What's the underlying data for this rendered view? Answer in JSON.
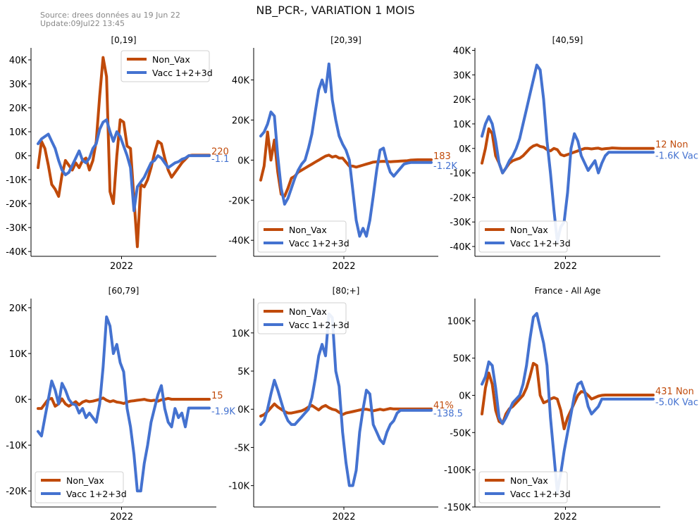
{
  "header": {
    "source": "Source: drees données au 19 Jun 22",
    "update": "Update:09Jul22 13:45",
    "title": "NB_PCR-, VARIATION 1 MOIS"
  },
  "colors": {
    "nonvax": "#c04a0a",
    "vacc": "#4472d0"
  },
  "chart_data": [
    {
      "type": "line",
      "title": "[0,19]",
      "xtick": "2022",
      "yticks": [
        40000,
        30000,
        20000,
        10000,
        0,
        -10000,
        -20000,
        -30000,
        -40000
      ],
      "ytick_labels": [
        "40K",
        "30K",
        "20K",
        "10K",
        "0K",
        "-10K",
        "-20K",
        "-30K",
        "-40K"
      ],
      "ylim": [
        -42000,
        45000
      ],
      "legend": "top-right",
      "end_labels": {
        "nonvax": "220",
        "vacc": "-1.1"
      },
      "x": [
        0,
        0.02,
        0.04,
        0.06,
        0.08,
        0.1,
        0.12,
        0.14,
        0.16,
        0.18,
        0.2,
        0.22,
        0.24,
        0.26,
        0.28,
        0.3,
        0.32,
        0.34,
        0.36,
        0.38,
        0.4,
        0.42,
        0.44,
        0.46,
        0.48,
        0.5,
        0.52,
        0.54,
        0.56,
        0.58,
        0.6,
        0.62,
        0.64,
        0.66,
        0.68,
        0.7,
        0.72,
        0.74,
        0.76,
        0.78,
        0.8,
        0.82,
        0.84,
        0.86,
        0.88,
        0.9,
        0.92,
        0.94,
        0.96,
        0.98,
        1
      ],
      "series": [
        {
          "name": "Non_Vax",
          "values": [
            -5000,
            6000,
            3000,
            -4000,
            -12000,
            -14000,
            -17000,
            -8000,
            -2000,
            -4000,
            -6000,
            -3000,
            -5000,
            -2000,
            -1000,
            -6000,
            -2000,
            6000,
            25000,
            41000,
            33000,
            -15000,
            -20000,
            0,
            15000,
            14000,
            4000,
            3000,
            -18000,
            -38000,
            -12000,
            -13000,
            -10000,
            -5000,
            1000,
            6000,
            5000,
            -1000,
            -6000,
            -9000,
            -7000,
            -5000,
            -3000,
            -1500,
            0,
            200,
            220,
            220,
            220,
            220,
            220
          ]
        },
        {
          "name": "Vacc 1+2+3d",
          "values": [
            5000,
            7000,
            8000,
            9000,
            6000,
            3000,
            -2000,
            -6000,
            -8000,
            -7000,
            -4000,
            -1000,
            2000,
            -2000,
            -3000,
            -1000,
            3000,
            5000,
            11000,
            14000,
            15000,
            10000,
            6000,
            10000,
            8000,
            4000,
            0,
            -5000,
            -23000,
            -13000,
            -11000,
            -9000,
            -6000,
            -3000,
            -2000,
            0,
            -1000,
            -3000,
            -5000,
            -4000,
            -3000,
            -2500,
            -1500,
            -1000,
            -1,
            -1,
            -1.1,
            -1.1,
            -1.1,
            -1.1,
            -1.1
          ]
        }
      ]
    },
    {
      "type": "line",
      "title": "[20,39]",
      "xtick": "2022",
      "yticks": [
        40000,
        20000,
        0,
        -20000,
        -40000
      ],
      "ytick_labels": [
        "40K",
        "20K",
        "0K",
        "-20K",
        "-40K"
      ],
      "ylim": [
        -48000,
        56000
      ],
      "legend": "bottom-left",
      "end_labels": {
        "nonvax": "183",
        "vacc": "-1.2K"
      },
      "x": [
        0,
        0.02,
        0.04,
        0.06,
        0.08,
        0.1,
        0.12,
        0.14,
        0.16,
        0.18,
        0.2,
        0.22,
        0.24,
        0.26,
        0.28,
        0.3,
        0.32,
        0.34,
        0.36,
        0.38,
        0.4,
        0.42,
        0.44,
        0.46,
        0.48,
        0.5,
        0.52,
        0.54,
        0.56,
        0.58,
        0.6,
        0.62,
        0.64,
        0.66,
        0.68,
        0.7,
        0.72,
        0.74,
        0.76,
        0.78,
        0.8,
        0.82,
        0.84,
        0.86,
        0.88,
        0.9,
        0.92,
        0.94,
        0.96,
        0.98,
        1
      ],
      "series": [
        {
          "name": "Non_Vax",
          "values": [
            -10000,
            -3000,
            14000,
            0,
            10000,
            -6000,
            -17000,
            -18000,
            -14000,
            -9000,
            -8000,
            -6000,
            -5000,
            -4000,
            -3000,
            -2000,
            -1000,
            0,
            1000,
            2000,
            2500,
            1500,
            2000,
            1000,
            1000,
            -1000,
            -3000,
            -3000,
            -3500,
            -3000,
            -2500,
            -2000,
            -1500,
            -1000,
            -800,
            -700,
            -600,
            -700,
            -800,
            -700,
            -600,
            -500,
            -400,
            -300,
            0,
            100,
            183,
            183,
            183,
            183,
            183
          ]
        },
        {
          "name": "Vacc 1+2+3d",
          "values": [
            12000,
            14000,
            18000,
            24000,
            22000,
            2000,
            -14000,
            -22000,
            -19000,
            -14000,
            -9000,
            -5000,
            -2000,
            0,
            6000,
            13000,
            24000,
            35000,
            40000,
            34000,
            48000,
            30000,
            20000,
            12000,
            8000,
            5000,
            0,
            -15000,
            -30000,
            -38000,
            -34000,
            -38000,
            -30000,
            -18000,
            -5000,
            5000,
            6000,
            -1000,
            -6000,
            -8000,
            -6000,
            -4000,
            -2000,
            -1500,
            -1200,
            -1200,
            -1200,
            -1200,
            -1200,
            -1200,
            -1200
          ]
        }
      ]
    },
    {
      "type": "line",
      "title": "[40,59]",
      "xtick": "2022",
      "yticks": [
        40000,
        30000,
        20000,
        10000,
        0,
        -10000,
        -20000,
        -30000,
        -40000
      ],
      "ytick_labels": [
        "40K",
        "30K",
        "20K",
        "10K",
        "0K",
        "-10K",
        "-20K",
        "-30K",
        "-40K"
      ],
      "ylim": [
        -44000,
        41000
      ],
      "legend": "bottom-left",
      "end_labels": {
        "nonvax": "12 Non",
        "vacc": "-1.6K Vac"
      },
      "x": [
        0,
        0.02,
        0.04,
        0.06,
        0.08,
        0.1,
        0.12,
        0.14,
        0.16,
        0.18,
        0.2,
        0.22,
        0.24,
        0.26,
        0.28,
        0.3,
        0.32,
        0.34,
        0.36,
        0.38,
        0.4,
        0.42,
        0.44,
        0.46,
        0.48,
        0.5,
        0.52,
        0.54,
        0.56,
        0.58,
        0.6,
        0.62,
        0.64,
        0.66,
        0.68,
        0.7,
        0.72,
        0.74,
        0.76,
        0.78,
        0.8,
        0.82,
        0.84,
        0.86,
        0.88,
        0.9,
        0.92,
        0.94,
        0.96,
        0.98,
        1
      ],
      "series": [
        {
          "name": "Non_Vax",
          "values": [
            -6000,
            0,
            8000,
            6000,
            -3000,
            -6000,
            -10000,
            -8000,
            -6000,
            -5000,
            -4500,
            -4000,
            -3000,
            -1500,
            0,
            1000,
            1500,
            800,
            500,
            -500,
            -1000,
            0,
            -500,
            -2500,
            -3000,
            -2500,
            -2000,
            -1500,
            -1000,
            -500,
            0,
            0,
            -200,
            0,
            100,
            -300,
            -100,
            0,
            200,
            100,
            50,
            12,
            12,
            12,
            12,
            12,
            12,
            12,
            12,
            12,
            12
          ]
        },
        {
          "name": "Vacc 1+2+3d",
          "values": [
            5000,
            10000,
            13000,
            10000,
            3000,
            -6000,
            -10000,
            -8000,
            -5000,
            -3000,
            0,
            4000,
            10000,
            16000,
            22000,
            28000,
            34000,
            32000,
            20000,
            3000,
            -10000,
            -25000,
            -38000,
            -32000,
            -30000,
            -18000,
            0,
            6000,
            3000,
            -3000,
            -6000,
            -9000,
            -7000,
            -5000,
            -10000,
            -6000,
            -3000,
            -1600,
            -1600,
            -1600,
            -1600,
            -1600,
            -1600,
            -1600,
            -1600,
            -1600,
            -1600,
            -1600,
            -1600,
            -1600,
            -1600
          ]
        }
      ]
    },
    {
      "type": "line",
      "title": "[60,79]",
      "xtick": "2022",
      "yticks": [
        20000,
        10000,
        0,
        -10000,
        -20000
      ],
      "ytick_labels": [
        "20K",
        "10K",
        "0K",
        "-10K",
        "-20K"
      ],
      "ylim": [
        -23500,
        22000
      ],
      "legend": "bottom-left",
      "end_labels": {
        "nonvax": "15",
        "vacc": "-1.9K"
      },
      "x": [
        0,
        0.02,
        0.04,
        0.06,
        0.08,
        0.1,
        0.12,
        0.14,
        0.16,
        0.18,
        0.2,
        0.22,
        0.24,
        0.26,
        0.28,
        0.3,
        0.32,
        0.34,
        0.36,
        0.38,
        0.4,
        0.42,
        0.44,
        0.46,
        0.48,
        0.5,
        0.52,
        0.54,
        0.56,
        0.58,
        0.6,
        0.62,
        0.64,
        0.66,
        0.68,
        0.7,
        0.72,
        0.74,
        0.76,
        0.78,
        0.8,
        0.82,
        0.84,
        0.86,
        0.88,
        0.9,
        0.92,
        0.94,
        0.96,
        0.98,
        1
      ],
      "series": [
        {
          "name": "Non_Vax",
          "values": [
            -2000,
            -2000,
            -1000,
            0,
            200,
            -1500,
            -1000,
            100,
            -1000,
            -1500,
            -1000,
            -500,
            -1200,
            -600,
            -300,
            -500,
            -400,
            -200,
            0,
            300,
            -200,
            -500,
            -300,
            -600,
            -700,
            -900,
            -600,
            -400,
            -300,
            -200,
            -100,
            0,
            -200,
            -300,
            -200,
            -400,
            -100,
            0,
            200,
            15,
            15,
            15,
            15,
            15,
            15,
            15,
            15,
            15,
            15,
            15,
            15
          ]
        },
        {
          "name": "Vacc 1+2+3d",
          "values": [
            -7000,
            -8000,
            -4000,
            0,
            4000,
            2000,
            -1000,
            3500,
            2000,
            0,
            -1000,
            -1200,
            -3000,
            -2000,
            -4000,
            -3000,
            -4000,
            -5000,
            -1000,
            7000,
            18000,
            16000,
            10000,
            12000,
            8000,
            6000,
            -2000,
            -6000,
            -12000,
            -20000,
            -20000,
            -14000,
            -10000,
            -5000,
            -2000,
            1000,
            3000,
            -2000,
            -5000,
            -6000,
            -2000,
            -4000,
            -3000,
            -6000,
            -1900,
            -1900,
            -1900,
            -1900,
            -1900,
            -1900,
            -1900
          ]
        }
      ]
    },
    {
      "type": "line",
      "title": "[80;+]",
      "xtick": "2022",
      "yticks": [
        10000,
        5000,
        0,
        -5000,
        -10000
      ],
      "ytick_labels": [
        "10K",
        "5K",
        "0K",
        "-5K",
        "-10K"
      ],
      "ylim": [
        -12800,
        14500
      ],
      "legend": "top-left",
      "end_labels": {
        "nonvax": "41%",
        "vacc": "-138.5"
      },
      "x": [
        0,
        0.02,
        0.04,
        0.06,
        0.08,
        0.1,
        0.12,
        0.14,
        0.16,
        0.18,
        0.2,
        0.22,
        0.24,
        0.26,
        0.28,
        0.3,
        0.32,
        0.34,
        0.36,
        0.38,
        0.4,
        0.42,
        0.44,
        0.46,
        0.48,
        0.5,
        0.52,
        0.54,
        0.56,
        0.58,
        0.6,
        0.62,
        0.64,
        0.66,
        0.68,
        0.7,
        0.72,
        0.74,
        0.76,
        0.78,
        0.8,
        0.82,
        0.84,
        0.86,
        0.88,
        0.9,
        0.92,
        0.94,
        0.96,
        0.98,
        1
      ],
      "series": [
        {
          "name": "Non_Vax",
          "values": [
            -900,
            -700,
            -300,
            200,
            700,
            300,
            0,
            -300,
            -500,
            -500,
            -400,
            -300,
            -200,
            0,
            300,
            500,
            200,
            -100,
            300,
            500,
            200,
            0,
            -100,
            -400,
            -700,
            -500,
            -400,
            -300,
            -200,
            -100,
            0,
            0,
            -100,
            -200,
            -100,
            0,
            -100,
            0,
            100,
            41,
            41,
            41,
            41,
            41,
            41,
            41,
            41,
            41,
            41,
            41,
            41
          ]
        },
        {
          "name": "Vacc 1+2+3d",
          "values": [
            -2000,
            -1500,
            0,
            2000,
            3800,
            2500,
            1000,
            -500,
            -1500,
            -2000,
            -2000,
            -1500,
            -1000,
            -500,
            0,
            1500,
            4000,
            7000,
            8500,
            7000,
            12500,
            12000,
            5000,
            3000,
            -3000,
            -7000,
            -10000,
            -10000,
            -8000,
            -3000,
            0,
            2500,
            2000,
            -2000,
            -3000,
            -4000,
            -4500,
            -3000,
            -2000,
            -1500,
            -500,
            -138.5,
            -138.5,
            -138.5,
            -138.5,
            -138.5,
            -138.5,
            -138.5,
            -138.5,
            -138.5,
            -138.5
          ]
        }
      ]
    },
    {
      "type": "line",
      "title": "France - All Age",
      "xtick": "2022",
      "yticks": [
        100000,
        50000,
        0,
        -50000,
        -100000,
        -150000
      ],
      "ytick_labels": [
        "100K",
        "50K",
        "0K",
        "-50K",
        "-100K",
        "-150K"
      ],
      "ylim": [
        -150000,
        130000
      ],
      "legend": "bottom-left",
      "end_labels": {
        "nonvax": "431 Non",
        "vacc": "-5.0K Vac"
      },
      "x": [
        0,
        0.02,
        0.04,
        0.06,
        0.08,
        0.1,
        0.12,
        0.14,
        0.16,
        0.18,
        0.2,
        0.22,
        0.24,
        0.26,
        0.28,
        0.3,
        0.32,
        0.34,
        0.36,
        0.38,
        0.4,
        0.42,
        0.44,
        0.46,
        0.48,
        0.5,
        0.52,
        0.54,
        0.56,
        0.58,
        0.6,
        0.62,
        0.64,
        0.66,
        0.68,
        0.7,
        0.72,
        0.74,
        0.76,
        0.78,
        0.8,
        0.82,
        0.84,
        0.86,
        0.88,
        0.9,
        0.92,
        0.94,
        0.96,
        0.98,
        1
      ],
      "series": [
        {
          "name": "Non_Vax",
          "values": [
            -25000,
            10000,
            30000,
            15000,
            -20000,
            -35000,
            -38000,
            -25000,
            -18000,
            -15000,
            -10000,
            -5000,
            0,
            10000,
            25000,
            43000,
            40000,
            0,
            -10000,
            -8000,
            -5000,
            -3000,
            -5000,
            -20000,
            -45000,
            -30000,
            -20000,
            -10000,
            0,
            5000,
            4000,
            0,
            -5000,
            -3000,
            -1000,
            0,
            431,
            431,
            431,
            431,
            431,
            431,
            431,
            431,
            431,
            431,
            431,
            431,
            431,
            431,
            431
          ]
        },
        {
          "name": "Vacc 1+2+3d",
          "values": [
            15000,
            25000,
            45000,
            40000,
            10000,
            -30000,
            -38000,
            -30000,
            -20000,
            -10000,
            -5000,
            0,
            15000,
            40000,
            75000,
            105000,
            110000,
            90000,
            70000,
            40000,
            -30000,
            -80000,
            -130000,
            -105000,
            -75000,
            -50000,
            -25000,
            0,
            15000,
            18000,
            5000,
            -15000,
            -25000,
            -20000,
            -15000,
            -5000,
            -5000,
            -5000,
            -5000,
            -5000,
            -5000,
            -5000,
            -5000,
            -5000,
            -5000,
            -5000,
            -5000,
            -5000,
            -5000,
            -5000,
            -5000
          ]
        }
      ]
    }
  ]
}
